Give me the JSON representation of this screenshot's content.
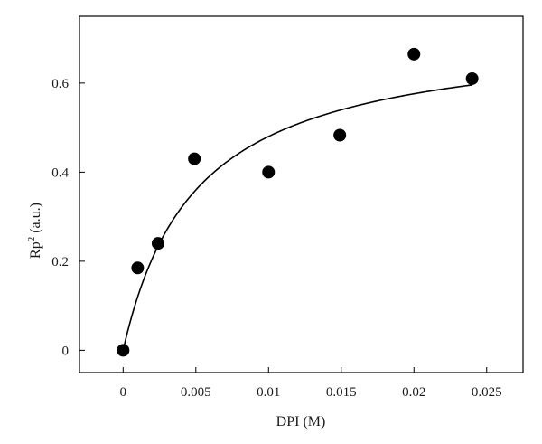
{
  "chart_data": {
    "type": "scatter",
    "xlabel": "DPI (M)",
    "ylabel_main": "Rp",
    "ylabel_sup": "2",
    "ylabel_suffix": " (a.u.)",
    "xlim": [
      -0.003,
      0.0275
    ],
    "ylim": [
      -0.05,
      0.75
    ],
    "xticks": [
      0,
      0.005,
      0.01,
      0.015,
      0.02,
      0.025
    ],
    "xtick_labels": [
      "0",
      "0.005",
      "0.01",
      "0.015",
      "0.02",
      "0.025"
    ],
    "yticks": [
      0,
      0.2,
      0.4,
      0.6
    ],
    "ytick_labels": [
      "0",
      "0.2",
      "0.4",
      "0.6"
    ],
    "grid": false,
    "series": [
      {
        "marker": "filled-circle",
        "color": "#000000",
        "x": [
          0,
          0.001,
          0.0024,
          0.0049,
          0.01,
          0.0149,
          0.02,
          0.024
        ],
        "y": [
          0.0,
          0.185,
          0.24,
          0.43,
          0.4,
          0.483,
          0.665,
          0.61
        ]
      },
      {
        "style": "line",
        "color": "#000000",
        "fit": "hyperbolic",
        "fit_params": {
          "max": 0.72,
          "k": 0.005
        },
        "x_range": [
          0,
          0.024
        ]
      }
    ]
  }
}
